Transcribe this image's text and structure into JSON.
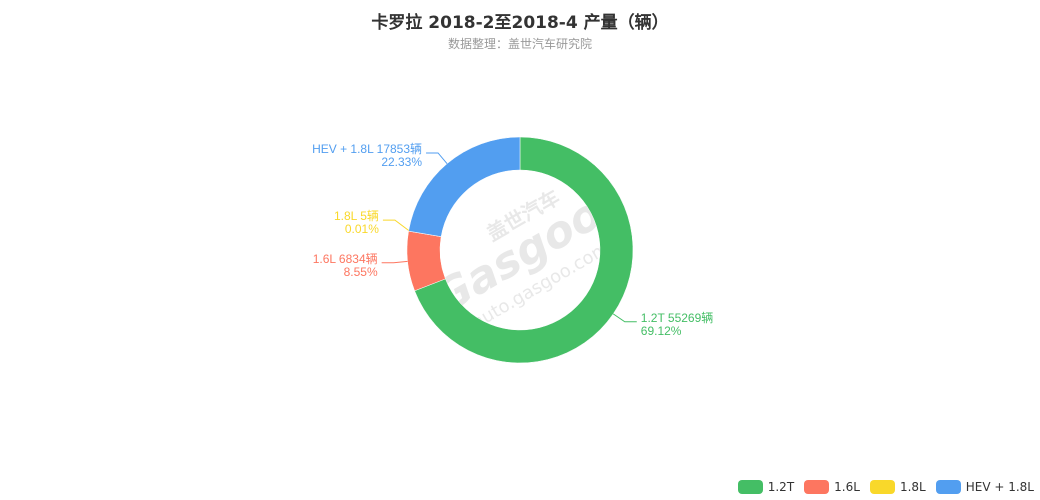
{
  "header": {
    "title": "卡罗拉 2018-2至2018-4 产量（辆）",
    "subtitle": "数据整理：盖世汽车研究院"
  },
  "watermark": {
    "brand_cn": "盖世汽车",
    "brand_en": "Gasgoo",
    "url": "auto.gasgoo.com"
  },
  "chart_data": {
    "type": "pie",
    "variant": "donut",
    "unit": "辆",
    "legend_position": "bottom-right",
    "slices": [
      {
        "name": "1.2T",
        "value": 55269,
        "percent": "69.12%",
        "label": "1.2T 55269辆",
        "color": "#44be65"
      },
      {
        "name": "1.6L",
        "value": 6834,
        "percent": "8.55%",
        "label": "1.6L 6834辆",
        "color": "#fd7660"
      },
      {
        "name": "1.8L",
        "value": 5,
        "percent": "0.01%",
        "label": "1.8L 5辆",
        "color": "#f9d82a"
      },
      {
        "name": "HEV + 1.8L",
        "value": 17853,
        "percent": "22.33%",
        "label": "HEV + 1.8L 17853辆",
        "color": "#529ef0"
      }
    ]
  }
}
